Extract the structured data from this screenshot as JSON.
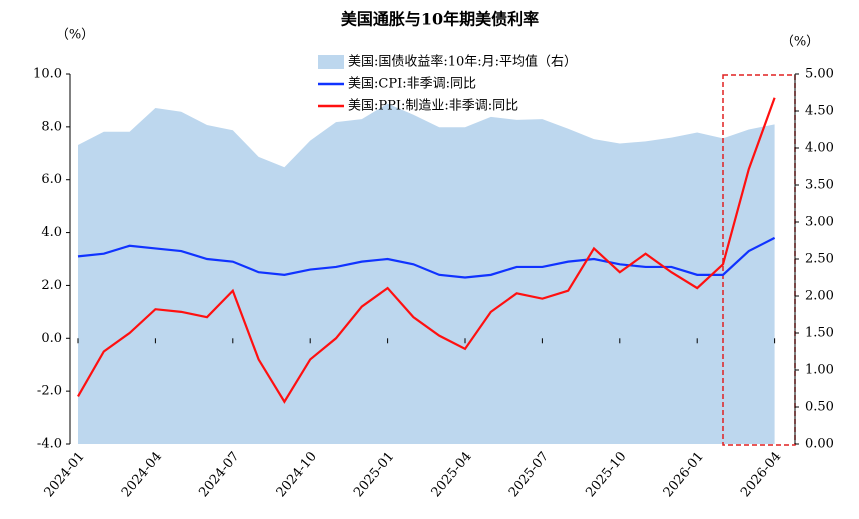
{
  "chart_data": {
    "type": "line",
    "title": "美国通胀与10年期美债利率",
    "ylabel": "（%）",
    "y2label": "（%）",
    "categories": [
      "2024-01",
      null,
      null,
      "2024-04",
      null,
      null,
      "2024-07",
      null,
      null,
      "2024-10",
      null,
      null,
      "2025-01",
      null,
      null,
      "2025-04",
      null,
      null,
      "2025-07",
      null,
      null,
      "2025-10",
      null,
      null,
      "2026-01",
      null,
      null,
      "2026-04"
    ],
    "ylim": [
      -4,
      10
    ],
    "yticks": [
      {
        "value": -4,
        "label": "-4.0"
      },
      {
        "value": -2,
        "label": "-2.0"
      },
      {
        "value": 0,
        "label": "0.0"
      },
      {
        "value": 2,
        "label": "2.0"
      },
      {
        "value": 4,
        "label": "4.0"
      },
      {
        "value": 6,
        "label": "6.0"
      },
      {
        "value": 8,
        "label": "8.0"
      },
      {
        "value": 10,
        "label": "10.0"
      }
    ],
    "y2lim": [
      0,
      5
    ],
    "y2ticks": [
      {
        "value": 0,
        "label": "0.00"
      },
      {
        "value": 0.5,
        "label": "0.50"
      },
      {
        "value": 1,
        "label": "1.00"
      },
      {
        "value": 1.5,
        "label": "1.50"
      },
      {
        "value": 2,
        "label": "2.00"
      },
      {
        "value": 2.5,
        "label": "2.50"
      },
      {
        "value": 3,
        "label": "3.00"
      },
      {
        "value": 3.5,
        "label": "3.50"
      },
      {
        "value": 4,
        "label": "4.00"
      },
      {
        "value": 4.5,
        "label": "4.50"
      },
      {
        "value": 5,
        "label": "5.00"
      }
    ],
    "series": [
      {
        "name": "美国:国债收益率:10年:月:平均值（右）",
        "kind": "area",
        "axis": "y2",
        "color": "#bdd7ee",
        "values": [
          4.04,
          4.22,
          4.22,
          4.54,
          4.49,
          4.31,
          4.24,
          3.88,
          3.74,
          4.1,
          4.35,
          4.39,
          4.6,
          4.45,
          4.28,
          4.28,
          4.42,
          4.38,
          4.39,
          4.26,
          4.12,
          4.06,
          4.09,
          4.14,
          4.21,
          4.13,
          4.25,
          4.32
        ]
      },
      {
        "name": "美国:CPI:非季调:同比",
        "kind": "line",
        "color": "#1033ff",
        "values": [
          3.1,
          3.2,
          3.5,
          3.4,
          3.3,
          3.0,
          2.9,
          2.5,
          2.4,
          2.6,
          2.7,
          2.9,
          3.0,
          2.8,
          2.4,
          2.3,
          2.4,
          2.7,
          2.7,
          2.9,
          3.0,
          2.8,
          2.7,
          2.7,
          2.4,
          2.4,
          3.3,
          3.8
        ]
      },
      {
        "name": "美国:PPI:制造业:非季调:同比",
        "kind": "line",
        "color": "#ff1010",
        "values": [
          -2.2,
          -0.5,
          0.2,
          1.1,
          1.0,
          0.8,
          1.8,
          -0.8,
          -2.4,
          -0.8,
          0.0,
          1.2,
          1.9,
          0.8,
          0.1,
          -0.4,
          1.0,
          1.7,
          1.5,
          1.8,
          3.4,
          2.5,
          3.2,
          2.5,
          1.9,
          2.8,
          6.4,
          9.1
        ]
      }
    ]
  }
}
